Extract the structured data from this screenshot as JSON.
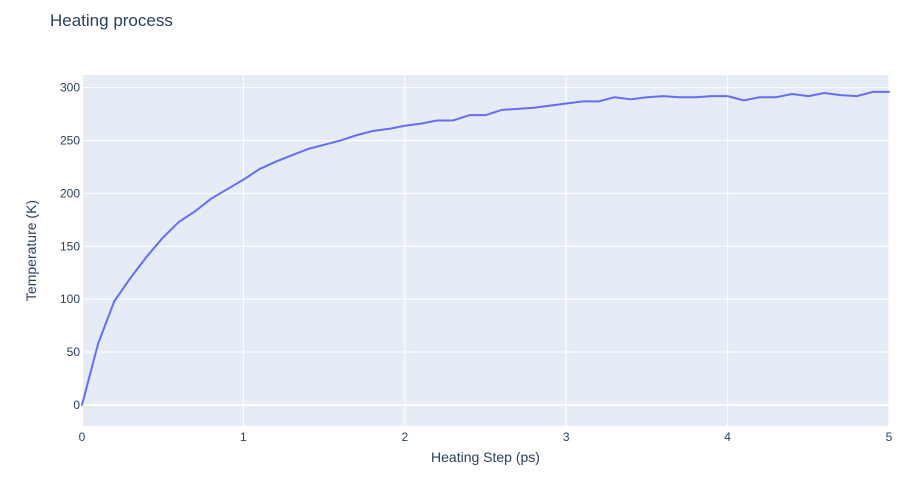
{
  "chart_data": {
    "type": "line",
    "title": "Heating process",
    "xlabel": "Heating Step (ps)",
    "ylabel": "Temperature (K)",
    "xlim": [
      0,
      5
    ],
    "ylim": [
      -20,
      312
    ],
    "x_ticks": [
      0,
      1,
      2,
      3,
      4,
      5
    ],
    "y_ticks": [
      0,
      50,
      100,
      150,
      200,
      250,
      300
    ],
    "grid": true,
    "background": "#e5ecf6",
    "series": [
      {
        "color": "#636efa",
        "x": [
          0,
          0.1,
          0.2,
          0.3,
          0.4,
          0.5,
          0.6,
          0.7,
          0.8,
          0.9,
          1.0,
          1.1,
          1.2,
          1.3,
          1.4,
          1.5,
          1.6,
          1.7,
          1.8,
          1.9,
          2.0,
          2.1,
          2.2,
          2.3,
          2.4,
          2.5,
          2.6,
          2.7,
          2.8,
          2.9,
          3.0,
          3.1,
          3.2,
          3.3,
          3.4,
          3.5,
          3.6,
          3.7,
          3.8,
          3.9,
          4.0,
          4.1,
          4.2,
          4.3,
          4.4,
          4.5,
          4.6,
          4.7,
          4.8,
          4.9,
          5.0
        ],
        "y": [
          0,
          58,
          98,
          120,
          140,
          158,
          173,
          183,
          195,
          204,
          213,
          223,
          230,
          236,
          242,
          246,
          250,
          255,
          259,
          261,
          264,
          266,
          269,
          269,
          274,
          274,
          279,
          280,
          281,
          283,
          285,
          287,
          287,
          291,
          289,
          291,
          292,
          291,
          291,
          292,
          292,
          288,
          291,
          291,
          294,
          292,
          295,
          293,
          292,
          296,
          296
        ]
      }
    ]
  }
}
